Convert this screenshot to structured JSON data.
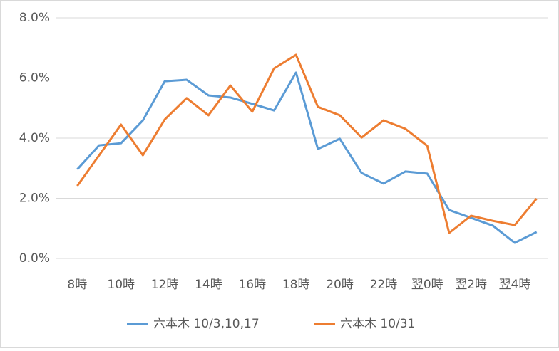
{
  "chart_data": {
    "type": "line",
    "categories": [
      "8時",
      null,
      "10時",
      null,
      "12時",
      null,
      "14時",
      null,
      "16時",
      null,
      "18時",
      null,
      "20時",
      null,
      "22時",
      null,
      "翌0時",
      null,
      "翌2時",
      null,
      "翌4時",
      null
    ],
    "series": [
      {
        "name": "六本木 10/3,10,17",
        "color": "#5b9bd5",
        "values": [
          2.96,
          3.76,
          3.83,
          4.59,
          5.89,
          5.94,
          5.42,
          5.35,
          5.14,
          4.92,
          6.18,
          3.64,
          3.98,
          2.84,
          2.49,
          2.89,
          2.82,
          1.61,
          1.35,
          1.09,
          0.52,
          0.88
        ]
      },
      {
        "name": "六本木 10/31",
        "color": "#ed7d31",
        "values": [
          2.41,
          3.43,
          4.45,
          3.43,
          4.62,
          5.33,
          4.76,
          5.75,
          4.88,
          6.32,
          6.77,
          5.04,
          4.76,
          4.02,
          4.59,
          4.31,
          3.74,
          0.85,
          1.42,
          1.25,
          1.11,
          1.99
        ]
      }
    ],
    "ylim": [
      0,
      8
    ],
    "yticks": [
      {
        "value": 0,
        "label": "0.0%"
      },
      {
        "value": 2,
        "label": "2.0%"
      },
      {
        "value": 4,
        "label": "4.0%"
      },
      {
        "value": 6,
        "label": "6.0%"
      },
      {
        "value": 8,
        "label": "8.0%"
      }
    ],
    "grid": true,
    "legend": "bottom"
  }
}
